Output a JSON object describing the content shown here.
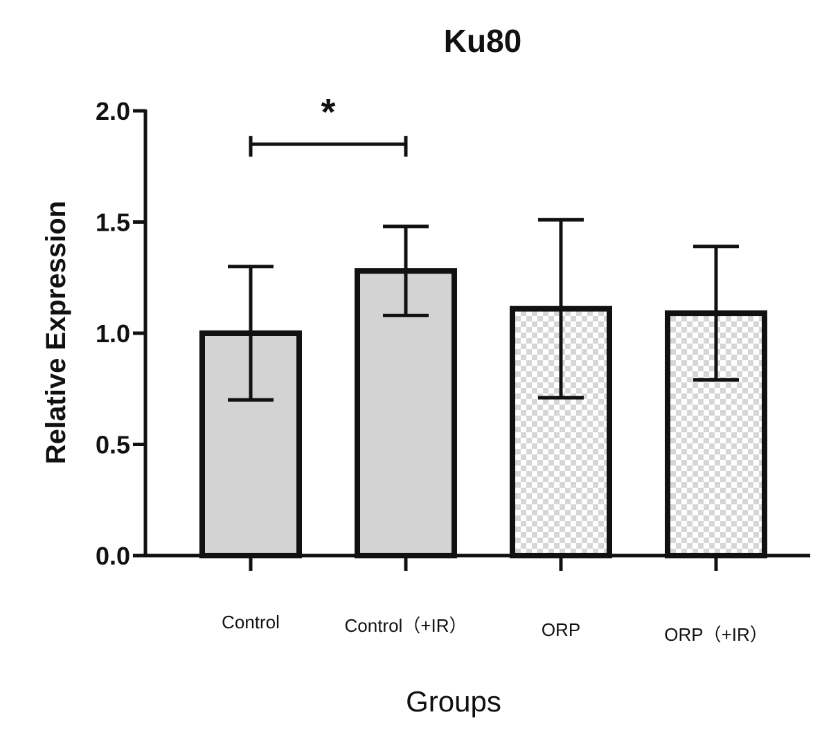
{
  "chart_data": {
    "type": "bar",
    "title": "Ku80",
    "xlabel": "Groups",
    "ylabel": "Relative Expression",
    "categories": [
      "Control",
      "Control（+IR）",
      "ORP",
      "ORP（+IR）"
    ],
    "values": [
      1.0,
      1.28,
      1.11,
      1.09
    ],
    "error_bars": [
      {
        "low": 0.7,
        "high": 1.3
      },
      {
        "low": 1.08,
        "high": 1.48
      },
      {
        "low": 0.71,
        "high": 1.51
      },
      {
        "low": 0.79,
        "high": 1.39
      }
    ],
    "fills": [
      "solid-gray",
      "solid-gray",
      "checker",
      "checker"
    ],
    "ylim": [
      0,
      2.0
    ],
    "yticks": [
      "0.0",
      "0.5",
      "1.0",
      "1.5",
      "2.0"
    ],
    "significance": [
      {
        "between": [
          0,
          1
        ],
        "y": 1.85,
        "label": "*"
      }
    ],
    "grid": false,
    "legend": "none"
  },
  "colors": {
    "bar_fill": "#d3d3d3",
    "checker_light": "#ffffff",
    "checker_dark": "#d6d6d6",
    "stroke": "#111111"
  }
}
